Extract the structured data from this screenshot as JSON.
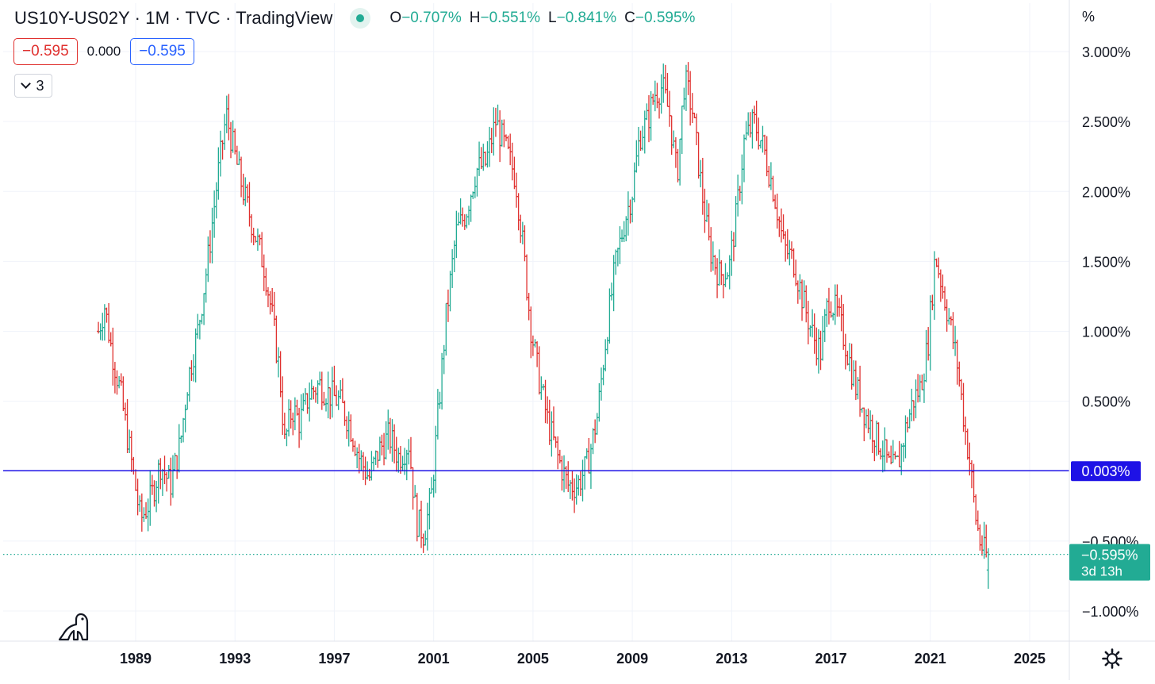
{
  "header": {
    "symbol_title": "US10Y-US02Y · 1M · TVC · TradingView",
    "ohlc": [
      {
        "key": "O",
        "value": "−0.707%"
      },
      {
        "key": "H",
        "value": "−0.551%"
      },
      {
        "key": "L",
        "value": "−0.841%"
      },
      {
        "key": "C",
        "value": "−0.595%"
      }
    ]
  },
  "indicator": {
    "value_left": "−0.595",
    "value_mid": "0.000",
    "value_right": "−0.595"
  },
  "collapse_button": {
    "count": "3"
  },
  "price_scale": {
    "unit": "%"
  },
  "last_price": {
    "value": "−0.595%",
    "countdown": "3d 13h"
  },
  "hline": {
    "value": 0.003,
    "label": "0.003%"
  },
  "icons": {
    "logo": "tradingview-dino-icon",
    "settings": "gear-icon"
  },
  "colors": {
    "up": "#22ab94",
    "down": "#e0312f",
    "hline": "#1e12e6",
    "axis_text": "#131722"
  },
  "chart_data": {
    "type": "ohlc-bar",
    "interval": "1M",
    "xlabel": "",
    "ylabel": "",
    "y_ticks": [
      3.0,
      2.5,
      2.0,
      1.5,
      1.0,
      0.5,
      -0.5,
      -1.0
    ],
    "y_tick_labels": [
      "3.000%",
      "2.500%",
      "2.000%",
      "1.500%",
      "1.000%",
      "0.500%",
      "−0.500%",
      "−1.000%"
    ],
    "ylim": [
      -1.17,
      3.32
    ],
    "x_ticks": [
      "1989",
      "1993",
      "1997",
      "2001",
      "2005",
      "2009",
      "2013",
      "2017",
      "2021",
      "2025"
    ],
    "xlim": [
      1985.6,
      2026.6
    ],
    "grid": true,
    "close_path": [
      [
        1987.5,
        1.0
      ],
      [
        1987.75,
        1.18
      ],
      [
        1988.0,
        0.9
      ],
      [
        1988.4,
        0.55
      ],
      [
        1988.8,
        0.1
      ],
      [
        1989.2,
        -0.35
      ],
      [
        1989.6,
        -0.2
      ],
      [
        1990.0,
        0.05
      ],
      [
        1990.4,
        -0.1
      ],
      [
        1990.8,
        0.2
      ],
      [
        1991.1,
        0.65
      ],
      [
        1991.5,
        1.0
      ],
      [
        1991.9,
        1.5
      ],
      [
        1992.3,
        2.1
      ],
      [
        1992.65,
        2.55
      ],
      [
        1993.0,
        2.25
      ],
      [
        1993.4,
        1.95
      ],
      [
        1993.8,
        1.7
      ],
      [
        1994.2,
        1.45
      ],
      [
        1994.5,
        1.1
      ],
      [
        1994.8,
        0.7
      ],
      [
        1995.0,
        0.2
      ],
      [
        1995.3,
        0.45
      ],
      [
        1995.6,
        0.35
      ],
      [
        1996.0,
        0.55
      ],
      [
        1996.4,
        0.62
      ],
      [
        1996.8,
        0.55
      ],
      [
        1997.2,
        0.5
      ],
      [
        1997.6,
        0.35
      ],
      [
        1998.0,
        0.1
      ],
      [
        1998.4,
        -0.05
      ],
      [
        1998.8,
        0.15
      ],
      [
        1999.2,
        0.25
      ],
      [
        1999.6,
        0.1
      ],
      [
        2000.0,
        0.2
      ],
      [
        2000.3,
        -0.35
      ],
      [
        2000.6,
        -0.45
      ],
      [
        2000.9,
        -0.2
      ],
      [
        2001.2,
        0.45
      ],
      [
        2001.5,
        1.1
      ],
      [
        2001.9,
        1.7
      ],
      [
        2002.3,
        1.85
      ],
      [
        2002.7,
        2.15
      ],
      [
        2003.1,
        2.2
      ],
      [
        2003.5,
        2.5
      ],
      [
        2003.9,
        2.3
      ],
      [
        2004.3,
        2.1
      ],
      [
        2004.6,
        1.6
      ],
      [
        2004.9,
        1.05
      ],
      [
        2005.2,
        0.7
      ],
      [
        2005.6,
        0.35
      ],
      [
        2006.0,
        0.1
      ],
      [
        2006.4,
        -0.1
      ],
      [
        2006.8,
        -0.1
      ],
      [
        2007.2,
        0.05
      ],
      [
        2007.6,
        0.4
      ],
      [
        2007.9,
        0.9
      ],
      [
        2008.3,
        1.45
      ],
      [
        2008.7,
        1.8
      ],
      [
        2009.0,
        2.0
      ],
      [
        2009.3,
        2.4
      ],
      [
        2009.6,
        2.5
      ],
      [
        2009.9,
        2.7
      ],
      [
        2010.2,
        2.75
      ],
      [
        2010.5,
        2.55
      ],
      [
        2010.8,
        2.1
      ],
      [
        2011.1,
        2.8
      ],
      [
        2011.4,
        2.6
      ],
      [
        2011.8,
        2.0
      ],
      [
        2012.1,
        1.6
      ],
      [
        2012.5,
        1.4
      ],
      [
        2012.9,
        1.45
      ],
      [
        2013.2,
        1.85
      ],
      [
        2013.5,
        2.35
      ],
      [
        2013.9,
        2.5
      ],
      [
        2014.3,
        2.3
      ],
      [
        2014.7,
        2.0
      ],
      [
        2015.1,
        1.6
      ],
      [
        2015.5,
        1.5
      ],
      [
        2015.9,
        1.2
      ],
      [
        2016.3,
        0.95
      ],
      [
        2016.6,
        0.85
      ],
      [
        2016.9,
        1.25
      ],
      [
        2017.3,
        1.1
      ],
      [
        2017.6,
        0.9
      ],
      [
        2018.0,
        0.6
      ],
      [
        2018.4,
        0.4
      ],
      [
        2018.8,
        0.25
      ],
      [
        2019.1,
        0.15
      ],
      [
        2019.4,
        0.0
      ],
      [
        2019.7,
        0.05
      ],
      [
        2020.0,
        0.3
      ],
      [
        2020.3,
        0.5
      ],
      [
        2020.6,
        0.6
      ],
      [
        2020.9,
        0.9
      ],
      [
        2021.2,
        1.55
      ],
      [
        2021.5,
        1.3
      ],
      [
        2021.8,
        1.05
      ],
      [
        2022.1,
        0.75
      ],
      [
        2022.4,
        0.3
      ],
      [
        2022.6,
        0.05
      ],
      [
        2022.8,
        -0.3
      ],
      [
        2023.0,
        -0.5
      ],
      [
        2023.2,
        -0.6
      ],
      [
        2023.33,
        -0.6
      ]
    ],
    "last_bar": {
      "time": 2023.33,
      "open": -0.707,
      "high": -0.551,
      "low": -0.841,
      "close": -0.595
    }
  }
}
